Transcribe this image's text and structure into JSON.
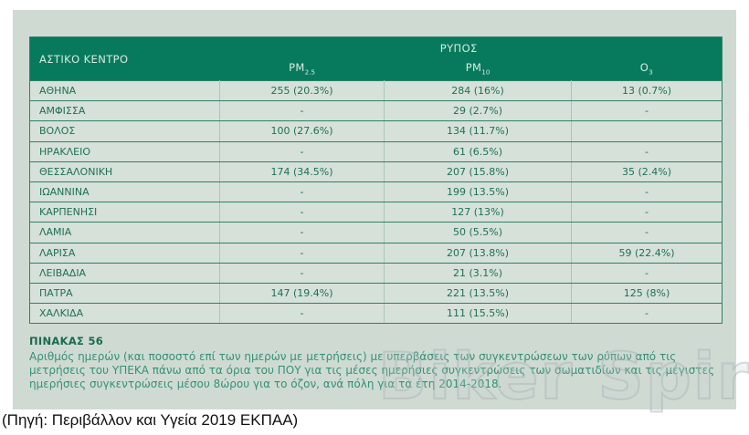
{
  "chart_data": {
    "type": "table",
    "title": "ΠΙΝΑΚΑΣ 56",
    "corner_header": "ΑΣΤΙΚΟ ΚΕΝΤΡΟ",
    "group_header": "ΡΥΠΟΣ",
    "columns": [
      {
        "label": "PM2.5",
        "base": "PM",
        "sub": "2.5"
      },
      {
        "label": "PM10",
        "base": "PM",
        "sub": "10"
      },
      {
        "label": "O3",
        "base": "O",
        "sub": "3"
      }
    ],
    "rows": [
      {
        "city": "ΑΘΗΝΑ",
        "values": [
          "255 (20.3%)",
          "284 (16%)",
          "13 (0.7%)"
        ]
      },
      {
        "city": "ΑΜΦΙΣΣΑ",
        "values": [
          "-",
          "29 (2.7%)",
          "-"
        ]
      },
      {
        "city": "ΒΟΛΟΣ",
        "values": [
          "100 (27.6%)",
          "134 (11.7%)",
          ""
        ]
      },
      {
        "city": "ΗΡΑΚΛΕΙΟ",
        "values": [
          "-",
          "61 (6.5%)",
          "-"
        ]
      },
      {
        "city": "ΘΕΣΣΑΛΟΝΙΚΗ",
        "values": [
          "174 (34.5%)",
          "207 (15.8%)",
          "35 (2.4%)"
        ]
      },
      {
        "city": "ΙΩΑΝΝΙΝΑ",
        "values": [
          "-",
          "199 (13.5%)",
          "-"
        ]
      },
      {
        "city": "ΚΑΡΠΕΝΗΣΙ",
        "values": [
          "-",
          "127 (13%)",
          "-"
        ]
      },
      {
        "city": "ΛΑΜΙΑ",
        "values": [
          "-",
          "50 (5.5%)",
          "-"
        ]
      },
      {
        "city": "ΛΑΡΙΣΑ",
        "values": [
          "-",
          "207 (13.8%)",
          "59 (22.4%)"
        ]
      },
      {
        "city": "ΛΕΙΒΑΔΙΑ",
        "values": [
          "-",
          "21 (3.1%)",
          "-"
        ]
      },
      {
        "city": "ΠΑΤΡΑ",
        "values": [
          "147 (19.4%)",
          "221 (13.5%)",
          "125 (8%)"
        ]
      },
      {
        "city": "ΧΑΛΚΙΔΑ",
        "values": [
          "-",
          "111 (15.5%)",
          "-"
        ]
      }
    ]
  },
  "caption": {
    "title": "ΠΙΝΑΚΑΣ 56",
    "body": "Αριθμός ημερών (και ποσοστό επί των ημερών με μετρήσεις) με υπερβάσεις των συγκεντρώσεων των ρύπων από τις μετρήσεις του ΥΠΕΚΑ πάνω από τα όρια του ΠΟΥ για τις μέσες ημερήσιες συγκεντρώσεις των σωματιδίων και τις μέγιστες ημερήσιες συγκεντρώσεις μέσου 8ώρου για το όζον, ανά πόλη για τα έτη 2014-2018."
  },
  "source_line": "(Πηγή: Περιβάλλον και Υγεία 2019 ΕΚΠΑΑ)",
  "watermark": {
    "text": "Biker Spirit"
  },
  "colors": {
    "header_green": "#077a5d",
    "header_text": "#d9eae0",
    "row_bg": "#d6e1d9",
    "border_green": "#2e8265",
    "cell_text_green": "#1e7154",
    "caption_title_green": "#1a6a50",
    "caption_body_green": "#349177",
    "panel_bg": "#cfdbd2",
    "watermark_gray": "#c4cbcf"
  }
}
